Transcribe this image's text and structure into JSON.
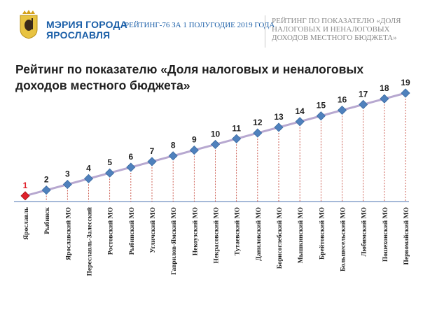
{
  "header": {
    "logo_line1": "МЭРИЯ ГОРОДА",
    "logo_line2": "ЯРОСЛАВЛЯ",
    "title": "РЕЙТИНГ-76  ЗА 1 ПОЛУГОДИЕ 2019 ГОДА",
    "subtitle": "РЕЙТИНГ ПО ПОКАЗАТЕЛЮ «ДОЛЯ НАЛОГОВЫХ И НЕНАЛОГОВЫХ ДОХОДОВ МЕСТНОГО БЮДЖЕТА»"
  },
  "colors": {
    "brand": "#1b5fa8",
    "highlight": "#e0202a",
    "marker": "#4f81bd",
    "line": "#b7a8d0"
  },
  "chart_data": {
    "type": "line",
    "title": "Рейтинг по показателю «Доля налоговых и неналоговых доходов местного бюджета»",
    "categories": [
      "Ярославль",
      "Рыбинск",
      "Ярославский МО",
      "Переславль-Залесский",
      "Ростовский МО",
      "Рыбинский МО",
      "Угличский МО",
      "Гаврилов-Ямский МО",
      "Некоузский МО",
      "Некрасовский МО",
      "Тутаевский МО",
      "Даниловский МО",
      "Борисоглебский МО",
      "Мышкинский МО",
      "Брейтовский МО",
      "Большесельский МО",
      "Любимский МО",
      "Пошехонский МО",
      "Первомайский МО"
    ],
    "values": [
      1,
      2,
      3,
      4,
      5,
      6,
      7,
      8,
      9,
      10,
      11,
      12,
      13,
      14,
      15,
      16,
      17,
      18,
      19
    ],
    "highlighted_category": "Ярославль",
    "ylim": [
      0,
      19
    ],
    "xlabel": "",
    "ylabel": "",
    "grid": false,
    "legend": "none"
  }
}
